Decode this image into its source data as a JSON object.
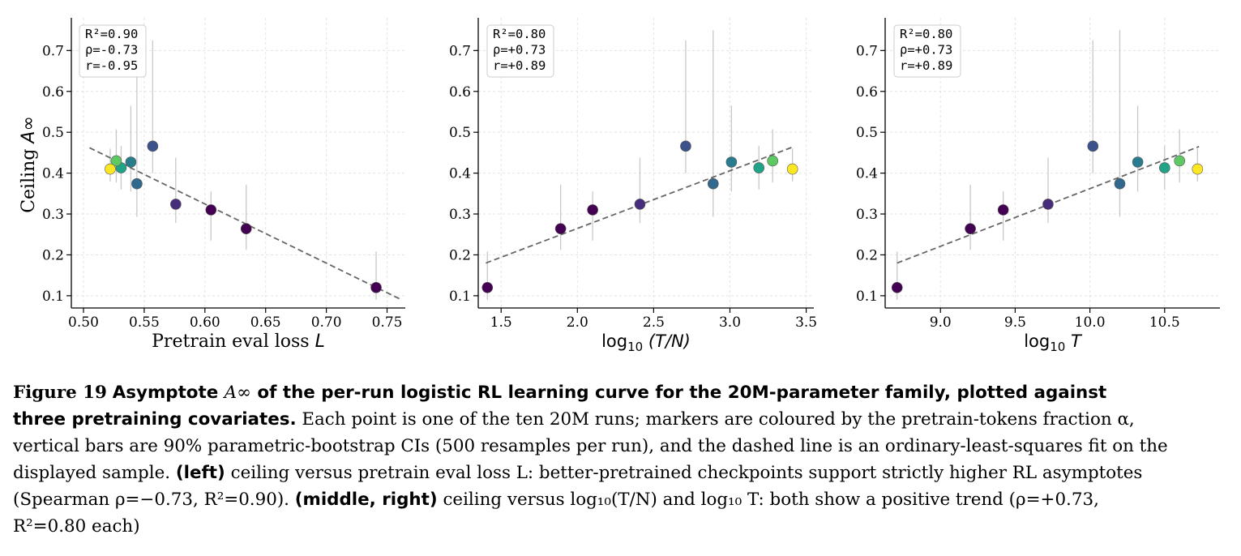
{
  "chart_data": [
    {
      "type": "scatter",
      "xlabel": "Pretrain eval loss  L",
      "ylabel": "Ceiling  A∞",
      "xlim": [
        0.49,
        0.765
      ],
      "ylim": [
        0.07,
        0.78
      ],
      "xticks": [
        "0.50",
        "0.55",
        "0.60",
        "0.65",
        "0.70",
        "0.75"
      ],
      "yticks": [
        "0.1",
        "0.2",
        "0.3",
        "0.4",
        "0.5",
        "0.6",
        "0.7"
      ],
      "stats": [
        "R²=0.90",
        "ρ=-0.73",
        "r=-0.95"
      ],
      "fit_line": {
        "x": [
          0.505,
          0.762
        ],
        "y": [
          0.462,
          0.09
        ]
      },
      "points": [
        {
          "x": 0.741,
          "y": 0.12,
          "lo": 0.09,
          "hi": 0.208,
          "color": "#440154"
        },
        {
          "x": 0.634,
          "y": 0.264,
          "lo": 0.212,
          "hi": 0.372,
          "color": "#440154"
        },
        {
          "x": 0.605,
          "y": 0.31,
          "lo": 0.235,
          "hi": 0.355,
          "color": "#440154"
        },
        {
          "x": 0.576,
          "y": 0.324,
          "lo": 0.278,
          "hi": 0.438,
          "color": "#472d7b"
        },
        {
          "x": 0.557,
          "y": 0.466,
          "lo": 0.4,
          "hi": 0.725,
          "color": "#3b528b"
        },
        {
          "x": 0.544,
          "y": 0.374,
          "lo": 0.293,
          "hi": 0.75,
          "color": "#31688e"
        },
        {
          "x": 0.539,
          "y": 0.427,
          "lo": 0.355,
          "hi": 0.565,
          "color": "#287c8e"
        },
        {
          "x": 0.531,
          "y": 0.413,
          "lo": 0.36,
          "hi": 0.467,
          "color": "#20a386"
        },
        {
          "x": 0.527,
          "y": 0.43,
          "lo": 0.377,
          "hi": 0.507,
          "color": "#5ec962"
        },
        {
          "x": 0.522,
          "y": 0.41,
          "lo": 0.38,
          "hi": 0.46,
          "color": "#fde725"
        }
      ]
    },
    {
      "type": "scatter",
      "xlabel": "log10 (T/N)",
      "ylabel": "",
      "xlim": [
        1.35,
        3.55
      ],
      "ylim": [
        0.07,
        0.78
      ],
      "xticks": [
        "1.5",
        "2.0",
        "2.5",
        "3.0",
        "3.5"
      ],
      "yticks": [
        "0.1",
        "0.2",
        "0.3",
        "0.4",
        "0.5",
        "0.6",
        "0.7"
      ],
      "stats": [
        "R²=0.80",
        "ρ=+0.73",
        "r=+0.89"
      ],
      "fit_line": {
        "x": [
          1.4,
          3.42
        ],
        "y": [
          0.18,
          0.465
        ]
      },
      "points": [
        {
          "x": 1.41,
          "y": 0.12,
          "lo": 0.09,
          "hi": 0.208,
          "color": "#440154"
        },
        {
          "x": 1.89,
          "y": 0.264,
          "lo": 0.212,
          "hi": 0.372,
          "color": "#440154"
        },
        {
          "x": 2.1,
          "y": 0.31,
          "lo": 0.235,
          "hi": 0.355,
          "color": "#440154"
        },
        {
          "x": 2.41,
          "y": 0.324,
          "lo": 0.278,
          "hi": 0.438,
          "color": "#472d7b"
        },
        {
          "x": 2.71,
          "y": 0.466,
          "lo": 0.4,
          "hi": 0.725,
          "color": "#3b528b"
        },
        {
          "x": 2.89,
          "y": 0.374,
          "lo": 0.293,
          "hi": 0.75,
          "color": "#31688e"
        },
        {
          "x": 3.01,
          "y": 0.427,
          "lo": 0.355,
          "hi": 0.565,
          "color": "#287c8e"
        },
        {
          "x": 3.19,
          "y": 0.413,
          "lo": 0.36,
          "hi": 0.467,
          "color": "#20a386"
        },
        {
          "x": 3.28,
          "y": 0.43,
          "lo": 0.377,
          "hi": 0.507,
          "color": "#5ec962"
        },
        {
          "x": 3.41,
          "y": 0.41,
          "lo": 0.38,
          "hi": 0.46,
          "color": "#fde725"
        }
      ]
    },
    {
      "type": "scatter",
      "xlabel": "log10 T",
      "ylabel": "",
      "xlim": [
        8.63,
        10.87
      ],
      "ylim": [
        0.07,
        0.78
      ],
      "xticks": [
        "9.0",
        "9.5",
        "10.0",
        "10.5"
      ],
      "yticks": [
        "0.1",
        "0.2",
        "0.3",
        "0.4",
        "0.5",
        "0.6",
        "0.7"
      ],
      "stats": [
        "R²=0.80",
        "ρ=+0.73",
        "r=+0.89"
      ],
      "fit_line": {
        "x": [
          8.71,
          10.73
        ],
        "y": [
          0.18,
          0.465
        ]
      },
      "points": [
        {
          "x": 8.71,
          "y": 0.12,
          "lo": 0.09,
          "hi": 0.208,
          "color": "#440154"
        },
        {
          "x": 9.2,
          "y": 0.264,
          "lo": 0.212,
          "hi": 0.372,
          "color": "#440154"
        },
        {
          "x": 9.42,
          "y": 0.31,
          "lo": 0.235,
          "hi": 0.355,
          "color": "#440154"
        },
        {
          "x": 9.72,
          "y": 0.324,
          "lo": 0.278,
          "hi": 0.438,
          "color": "#472d7b"
        },
        {
          "x": 10.02,
          "y": 0.466,
          "lo": 0.4,
          "hi": 0.725,
          "color": "#3b528b"
        },
        {
          "x": 10.2,
          "y": 0.374,
          "lo": 0.293,
          "hi": 0.75,
          "color": "#31688e"
        },
        {
          "x": 10.32,
          "y": 0.427,
          "lo": 0.355,
          "hi": 0.565,
          "color": "#287c8e"
        },
        {
          "x": 10.5,
          "y": 0.413,
          "lo": 0.36,
          "hi": 0.467,
          "color": "#20a386"
        },
        {
          "x": 10.6,
          "y": 0.43,
          "lo": 0.377,
          "hi": 0.507,
          "color": "#5ec962"
        },
        {
          "x": 10.72,
          "y": 0.41,
          "lo": 0.38,
          "hi": 0.46,
          "color": "#fde725"
        }
      ]
    }
  ],
  "caption": {
    "figure_label": "Figure 19",
    "title_line1_a": "Asymptote ",
    "title_sym": "A∞",
    "title_line1_b": " of the per-run logistic RL learning curve for the 20M-parameter family, plotted against",
    "title_line2": "three pretraining covariates.",
    "line2_rest": " Each point is one of the ten 20M runs; markers are coloured by the pretrain-tokens fraction α,",
    "line3": "vertical bars are 90% parametric-bootstrap CIs (500 resamples per run), and the dashed line is an ordinary-least-squares fit on the",
    "line4_a": "displayed sample.",
    "line4_bold": "(left)",
    "line4_b": "ceiling versus pretrain eval loss L: better-pretrained checkpoints support strictly higher RL asymptotes",
    "line5_a": "(Spearman ρ=−0.73, R²=0.90).",
    "line5_bold": "(middle, right)",
    "line5_b": "ceiling versus log₁₀(T/N) and log₁₀ T: both show a positive trend (ρ=+0.73,",
    "line6": "R²=0.80 each)"
  }
}
